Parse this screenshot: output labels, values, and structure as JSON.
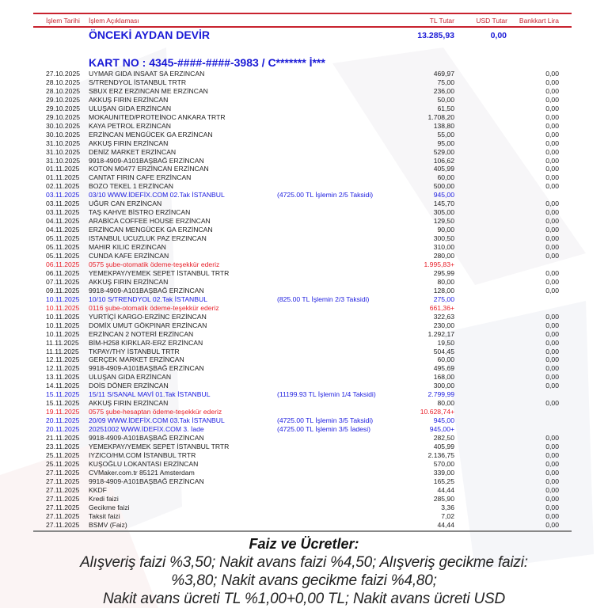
{
  "colors": {
    "header_red": "#c8222e",
    "blue": "#2020e0",
    "red": "#e8202a",
    "text": "#222222"
  },
  "table_header": {
    "date": "İşlem Tarihi",
    "description": "İşlem Açıklaması",
    "tl": "TL Tutar",
    "usd": "USD Tutar",
    "bankkart": "Bankkart Lira"
  },
  "carryover": {
    "label": "ÖNCEKİ AYDAN DEVİR",
    "tl": "13.285,93",
    "usd": "0,00"
  },
  "card_line": "KART NO : 4345-####-####-3983 / C******* İ***",
  "rows": [
    [
      "27.10.2025",
      "UYMAR GIDA INSAAT SA ERZINCAN",
      "",
      "469,97",
      "0,00",
      "n"
    ],
    [
      "28.10.2025",
      "S/TRENDYOL İSTANBUL TRTR",
      "",
      "75,00",
      "0,00",
      "n"
    ],
    [
      "28.10.2025",
      "SBUX ERZ ERZINCAN ME ERZİNCAN",
      "",
      "236,00",
      "0,00",
      "n"
    ],
    [
      "29.10.2025",
      "AKKUŞ FIRIN ERZİNCAN",
      "",
      "50,00",
      "0,00",
      "n"
    ],
    [
      "29.10.2025",
      "ULUŞAN GIDA ERZİNCAN",
      "",
      "61,50",
      "0,00",
      "n"
    ],
    [
      "29.10.2025",
      "MOKAUNITED/PROTEİNOC ANKARA TRTR",
      "",
      "1.708,20",
      "0,00",
      "n"
    ],
    [
      "30.10.2025",
      "KAYA PETROL ERZINCAN",
      "",
      "138,80",
      "0,00",
      "n"
    ],
    [
      "30.10.2025",
      "ERZİNCAN MENGÜCEK GA ERZİNCAN",
      "",
      "55,00",
      "0,00",
      "n"
    ],
    [
      "31.10.2025",
      "AKKUŞ FIRIN ERZİNCAN",
      "",
      "95,00",
      "0,00",
      "n"
    ],
    [
      "31.10.2025",
      "DENİZ MARKET ERZİNCAN",
      "",
      "529,00",
      "0,00",
      "n"
    ],
    [
      "31.10.2025",
      "9918-4909-A101BAŞBAĞ ERZİNCAN",
      "",
      "106,62",
      "0,00",
      "n"
    ],
    [
      "01.11.2025",
      "KOTON M0477 ERZİNCAN ERZİNCAN",
      "",
      "405,99",
      "0,00",
      "n"
    ],
    [
      "01.11.2025",
      "CANTAT FIRIN CAFE ERZİNCAN",
      "",
      "60,00",
      "0,00",
      "n"
    ],
    [
      "02.11.2025",
      "BOZO TEKEL 1 ERZİNCAN",
      "",
      "500,00",
      "0,00",
      "n"
    ],
    [
      "03.11.2025",
      "03/10 WWW.İDEFİX.COM 02.Tak İSTANBUL",
      "(4725.00 TL İşlemin 2/5 Taksidi)",
      "945,00",
      "",
      "b"
    ],
    [
      "03.11.2025",
      "UĞUR CAN ERZİNCAN",
      "",
      "145,70",
      "0,00",
      "n"
    ],
    [
      "03.11.2025",
      "TAŞ KAHVE BİSTRO ERZİNCAN",
      "",
      "305,00",
      "0,00",
      "n"
    ],
    [
      "04.11.2025",
      "ARABİCA COFFEE HOUSE ERZİNCAN",
      "",
      "129,50",
      "0,00",
      "n"
    ],
    [
      "04.11.2025",
      "ERZİNCAN MENGÜCEK GA ERZİNCAN",
      "",
      "90,00",
      "0,00",
      "n"
    ],
    [
      "05.11.2025",
      "ISTANBUL UCUZLUK PAZ ERZINCAN",
      "",
      "300,50",
      "0,00",
      "n"
    ],
    [
      "05.11.2025",
      "MAHIR KILIC ERZINCAN",
      "",
      "310,00",
      "0,00",
      "n"
    ],
    [
      "05.11.2025",
      "CUNDA KAFE ERZİNCAN",
      "",
      "280,00",
      "0,00",
      "n"
    ],
    [
      "06.11.2025",
      "0575 şube-otomatik ödeme-teşekkür ederiz",
      "",
      "1.995,83+",
      "",
      "r"
    ],
    [
      "06.11.2025",
      "YEMEKPAY/YEMEK SEPET İSTANBUL TRTR",
      "",
      "295,99",
      "0,00",
      "n"
    ],
    [
      "07.11.2025",
      "AKKUŞ FIRIN ERZİNCAN",
      "",
      "80,00",
      "0,00",
      "n"
    ],
    [
      "09.11.2025",
      "9918-4909-A101BAŞBAĞ ERZİNCAN",
      "",
      "128,00",
      "0,00",
      "n"
    ],
    [
      "10.11.2025",
      "10/10 S/TRENDYOL 02.Tak İSTANBUL",
      "(825.00 TL İşlemin 2/3 Taksidi)",
      "275,00",
      "",
      "b"
    ],
    [
      "10.11.2025",
      "0116 şube-otomatik ödeme-teşekkür ederiz",
      "",
      "661,36+",
      "",
      "r"
    ],
    [
      "10.11.2025",
      "YURTİÇİ KARGO-ERZİNC ERZİNCAN",
      "",
      "322,63",
      "0,00",
      "n"
    ],
    [
      "10.11.2025",
      "DOMİX UMUT GÖKPINAR ERZİNCAN",
      "",
      "230,00",
      "0,00",
      "n"
    ],
    [
      "10.11.2025",
      "ERZİNCAN 2 NOTERİ ERZİNCAN",
      "",
      "1.292,17",
      "0,00",
      "n"
    ],
    [
      "11.11.2025",
      "BİM-H258 KIRKLAR-ERZ ERZİNCAN",
      "",
      "19,50",
      "0,00",
      "n"
    ],
    [
      "11.11.2025",
      "TKPAY/THY İSTANBUL TRTR",
      "",
      "504,45",
      "0,00",
      "n"
    ],
    [
      "12.11.2025",
      "GERÇEK MARKET ERZİNCAN",
      "",
      "60,00",
      "0,00",
      "n"
    ],
    [
      "12.11.2025",
      "9918-4909-A101BAŞBAĞ ERZİNCAN",
      "",
      "495,69",
      "0,00",
      "n"
    ],
    [
      "13.11.2025",
      "ULUŞAN GIDA ERZİNCAN",
      "",
      "168,00",
      "0,00",
      "n"
    ],
    [
      "14.11.2025",
      "DOİS DÖNER ERZİNCAN",
      "",
      "300,00",
      "0,00",
      "n"
    ],
    [
      "15.11.2025",
      "15/11 S/SANAL MAVİ 01.Tak İSTANBUL",
      "(11199.93 TL İşlemin 1/4 Taksidi)",
      "2.799,99",
      "",
      "b"
    ],
    [
      "15.11.2025",
      "AKKUŞ FIRIN ERZİNCAN",
      "",
      "80,00",
      "0,00",
      "n"
    ],
    [
      "19.11.2025",
      "0575 şube-hesaptan ödeme-teşekkür ederiz",
      "",
      "10.628,74+",
      "",
      "r"
    ],
    [
      "20.11.2025",
      "20/09 WWW.İDEFİX.COM 03.Tak İSTANBUL",
      "(4725.00 TL İşlemin 3/5 Taksidi)",
      "945,00",
      "",
      "b"
    ],
    [
      "20.11.2025",
      "20251002 WWW.İDEFİX.COM 3. İade",
      "(4725.00 TL İşlemin 3/5 İadesi)",
      "945,00+",
      "",
      "b"
    ],
    [
      "21.11.2025",
      "9918-4909-A101BAŞBAĞ ERZİNCAN",
      "",
      "282,50",
      "0,00",
      "n"
    ],
    [
      "23.11.2025",
      "YEMEKPAY/YEMEK SEPET İSTANBUL TRTR",
      "",
      "405,99",
      "0,00",
      "n"
    ],
    [
      "25.11.2025",
      "IYZICO/HM.COM İSTANBUL TRTR",
      "",
      "2.136,75",
      "0,00",
      "n"
    ],
    [
      "25.11.2025",
      "KUŞOĞLU LOKANTASI ERZİNCAN",
      "",
      "570,00",
      "0,00",
      "n"
    ],
    [
      "27.11.2025",
      "CVMaker.com.tr 85121 Amsterdam",
      "",
      "339,00",
      "0,00",
      "n"
    ],
    [
      "27.11.2025",
      "9918-4909-A101BAŞBAĞ ERZİNCAN",
      "",
      "165,25",
      "0,00",
      "n"
    ],
    [
      "27.11.2025",
      "KKDF",
      "",
      "44,44",
      "0,00",
      "n"
    ],
    [
      "27.11.2025",
      "Kredi faizi",
      "",
      "285,90",
      "0,00",
      "n"
    ],
    [
      "27.11.2025",
      "Gecikme faizi",
      "",
      "3,36",
      "0,00",
      "n"
    ],
    [
      "27.11.2025",
      "Taksit faizi",
      "",
      "7,02",
      "0,00",
      "n"
    ],
    [
      "27.11.2025",
      "BSMV (Faiz)",
      "",
      "44,44",
      "0,00",
      "n"
    ]
  ],
  "fees": {
    "title": "Faiz ve Ücretler:",
    "lines": [
      "Alışveriş faizi %3,50; Nakit avans faizi %4,50; Alışveriş gecikme faizi:",
      "%3,80; Nakit avans gecikme faizi %4,80;",
      "Nakit avans ücreti TL %1,00+0,00 TL; Nakit avans ücreti USD"
    ]
  }
}
